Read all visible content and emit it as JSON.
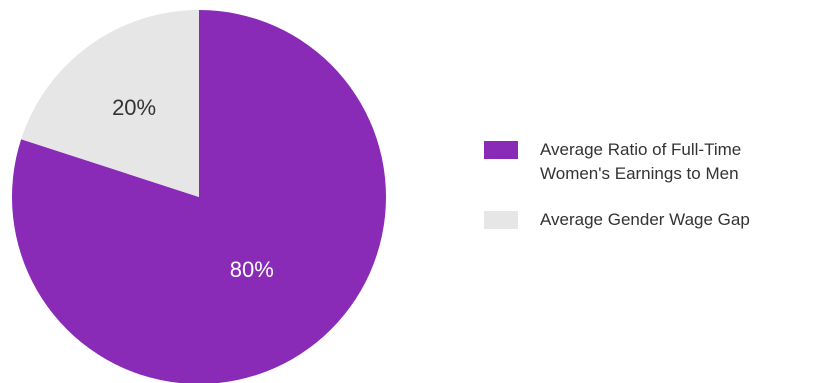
{
  "chart_data": {
    "type": "pie",
    "slices": [
      {
        "label": "Average Ratio of Full-Time\nWomen's Earnings to Men",
        "value": 80,
        "display": "80%",
        "color": "#8a2bb8",
        "text_color": "#ffffff"
      },
      {
        "label": "Average Gender Wage Gap",
        "value": 20,
        "display": "20%",
        "color": "#e6e6e6",
        "text_color": "#333333"
      }
    ],
    "start_angle_deg": 0,
    "direction": "clockwise",
    "legend_position": "right"
  }
}
